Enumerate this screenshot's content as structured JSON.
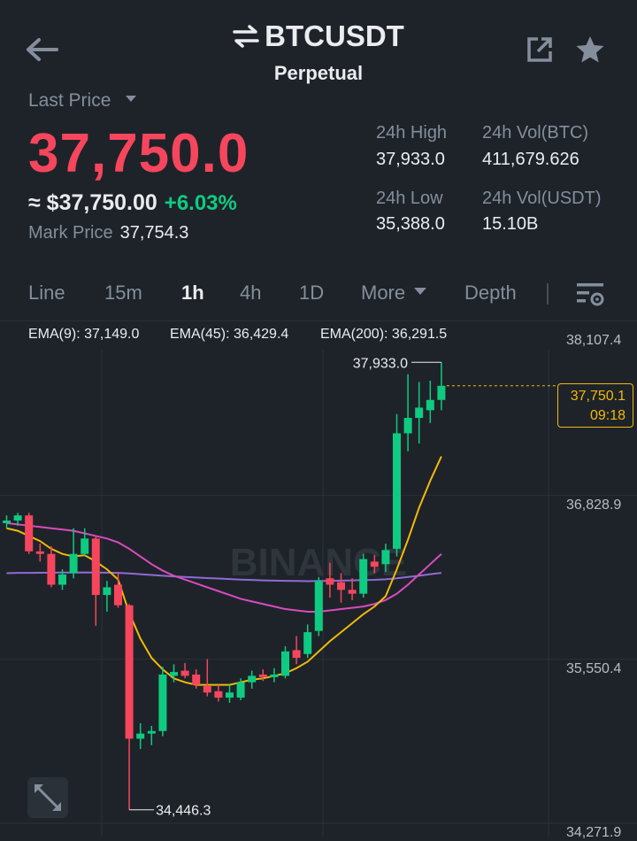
{
  "header": {
    "symbol": "BTCUSDT",
    "contract": "Perpetual",
    "back_icon": "arrow-left-icon",
    "swap_icon": "swap-arrows-icon",
    "share_icon": "share-icon",
    "favorite_icon": "star-icon"
  },
  "price": {
    "last_price_label": "Last Price",
    "last_price": "37,750.0",
    "approx_usd": "≈ $37,750.00",
    "change_pct": "+6.03%",
    "mark_price_label": "Mark Price",
    "mark_price": "37,754.3"
  },
  "stats": {
    "high_label": "24h High",
    "high": "37,933.0",
    "vol_btc_label": "24h Vol(BTC)",
    "vol_btc": "411,679.626",
    "low_label": "24h Low",
    "low": "35,388.0",
    "vol_usdt_label": "24h Vol(USDT)",
    "vol_usdt": "15.10B"
  },
  "tabs": [
    {
      "label": "Line",
      "active": false
    },
    {
      "label": "15m",
      "active": false
    },
    {
      "label": "1h",
      "active": true
    },
    {
      "label": "4h",
      "active": false
    },
    {
      "label": "1D",
      "active": false
    },
    {
      "label": "More",
      "active": false
    },
    {
      "label": "Depth",
      "active": false
    }
  ],
  "indicators": {
    "ema9": "EMA(9): 37,149.0",
    "ema45": "EMA(45): 36,429.4",
    "ema200": "EMA(200): 36,291.5"
  },
  "colors": {
    "up": "#0ecb81",
    "down": "#f6465d",
    "ema9": "#f0b90b",
    "ema45": "#d94bbf",
    "ema200": "#8f6bd6",
    "accent": "#f0b90b"
  },
  "watermark": "BINANCE",
  "chart": {
    "current_price_label": "37,750.1",
    "countdown": "09:18",
    "high_marker": "37,933.0",
    "low_marker": "34,446.3"
  },
  "chart_data": {
    "type": "candlestick",
    "y_ticks": [
      "38,107.4",
      "36,828.9",
      "35,550.4",
      "34,271.9"
    ],
    "ylim": [
      34271.9,
      38107.4
    ],
    "current_price": 37750.1,
    "candles": [
      {
        "o": 36680,
        "h": 36740,
        "l": 36640,
        "c": 36700
      },
      {
        "o": 36700,
        "h": 36760,
        "l": 36660,
        "c": 36740
      },
      {
        "o": 36740,
        "h": 36760,
        "l": 36440,
        "c": 36460
      },
      {
        "o": 36460,
        "h": 36520,
        "l": 36380,
        "c": 36440
      },
      {
        "o": 36440,
        "h": 36500,
        "l": 36180,
        "c": 36200
      },
      {
        "o": 36200,
        "h": 36320,
        "l": 36160,
        "c": 36280
      },
      {
        "o": 36290,
        "h": 36640,
        "l": 36250,
        "c": 36440
      },
      {
        "o": 36440,
        "h": 36640,
        "l": 36420,
        "c": 36560
      },
      {
        "o": 36560,
        "h": 36580,
        "l": 35880,
        "c": 36120
      },
      {
        "o": 36120,
        "h": 36230,
        "l": 35990,
        "c": 36180
      },
      {
        "o": 36200,
        "h": 36300,
        "l": 36020,
        "c": 36040
      },
      {
        "o": 36040,
        "h": 36050,
        "l": 34446.3,
        "c": 35000
      },
      {
        "o": 35000,
        "h": 35120,
        "l": 34920,
        "c": 35040
      },
      {
        "o": 35040,
        "h": 35100,
        "l": 34950,
        "c": 35060
      },
      {
        "o": 35060,
        "h": 35560,
        "l": 35020,
        "c": 35500
      },
      {
        "o": 35490,
        "h": 35580,
        "l": 35440,
        "c": 35520
      },
      {
        "o": 35530,
        "h": 35590,
        "l": 35470,
        "c": 35490
      },
      {
        "o": 35500,
        "h": 35540,
        "l": 35390,
        "c": 35420
      },
      {
        "o": 35410,
        "h": 35620,
        "l": 35330,
        "c": 35360
      },
      {
        "o": 35370,
        "h": 35420,
        "l": 35290,
        "c": 35320
      },
      {
        "o": 35320,
        "h": 35420,
        "l": 35280,
        "c": 35360
      },
      {
        "o": 35320,
        "h": 35470,
        "l": 35300,
        "c": 35440
      },
      {
        "o": 35440,
        "h": 35530,
        "l": 35390,
        "c": 35490
      },
      {
        "o": 35500,
        "h": 35540,
        "l": 35450,
        "c": 35480
      },
      {
        "o": 35480,
        "h": 35550,
        "l": 35440,
        "c": 35500
      },
      {
        "o": 35490,
        "h": 35720,
        "l": 35470,
        "c": 35680
      },
      {
        "o": 35690,
        "h": 35800,
        "l": 35580,
        "c": 35630
      },
      {
        "o": 35660,
        "h": 35890,
        "l": 35630,
        "c": 35830
      },
      {
        "o": 35840,
        "h": 36260,
        "l": 35800,
        "c": 36230
      },
      {
        "o": 36250,
        "h": 36370,
        "l": 36100,
        "c": 36200
      },
      {
        "o": 36220,
        "h": 36290,
        "l": 36060,
        "c": 36160
      },
      {
        "o": 36160,
        "h": 36250,
        "l": 36080,
        "c": 36130
      },
      {
        "o": 36130,
        "h": 36440,
        "l": 36100,
        "c": 36400
      },
      {
        "o": 36380,
        "h": 36430,
        "l": 36290,
        "c": 36340
      },
      {
        "o": 36360,
        "h": 36520,
        "l": 36300,
        "c": 36470
      },
      {
        "o": 36480,
        "h": 37530,
        "l": 36420,
        "c": 37380
      },
      {
        "o": 37380,
        "h": 37840,
        "l": 37240,
        "c": 37500
      },
      {
        "o": 37500,
        "h": 37780,
        "l": 37300,
        "c": 37580
      },
      {
        "o": 37560,
        "h": 37790,
        "l": 37460,
        "c": 37640
      },
      {
        "o": 37640,
        "h": 37933,
        "l": 37560,
        "c": 37750.1
      }
    ],
    "ema9_series": [
      36640,
      36620,
      36580,
      36540,
      36480,
      36440,
      36420,
      36430,
      36380,
      36320,
      36240,
      35980,
      35780,
      35630,
      35540,
      35470,
      35440,
      35420,
      35420,
      35420,
      35420,
      35440,
      35460,
      35470,
      35490,
      35510,
      35550,
      35600,
      35680,
      35760,
      35830,
      35900,
      35970,
      36030,
      36110,
      36320,
      36550,
      36800,
      37010,
      37200
    ],
    "ema45_series": [
      36680,
      36670,
      36660,
      36650,
      36640,
      36630,
      36620,
      36600,
      36580,
      36560,
      36530,
      36480,
      36420,
      36360,
      36310,
      36270,
      36240,
      36210,
      36180,
      36150,
      36120,
      36090,
      36070,
      36050,
      36030,
      36010,
      36000,
      35990,
      35990,
      36000,
      36010,
      36020,
      36030,
      36050,
      36080,
      36130,
      36200,
      36280,
      36360,
      36440
    ],
    "ema200_series": [
      36290,
      36292,
      36292,
      36293,
      36294,
      36295,
      36295,
      36296,
      36295,
      36294,
      36292,
      36288,
      36282,
      36276,
      36270,
      36265,
      36260,
      36256,
      36252,
      36248,
      36244,
      36240,
      36237,
      36234,
      36232,
      36230,
      36229,
      36228,
      36229,
      36230,
      36232,
      36234,
      36236,
      36238,
      36242,
      36250,
      36260,
      36270,
      36282,
      36292
    ]
  }
}
